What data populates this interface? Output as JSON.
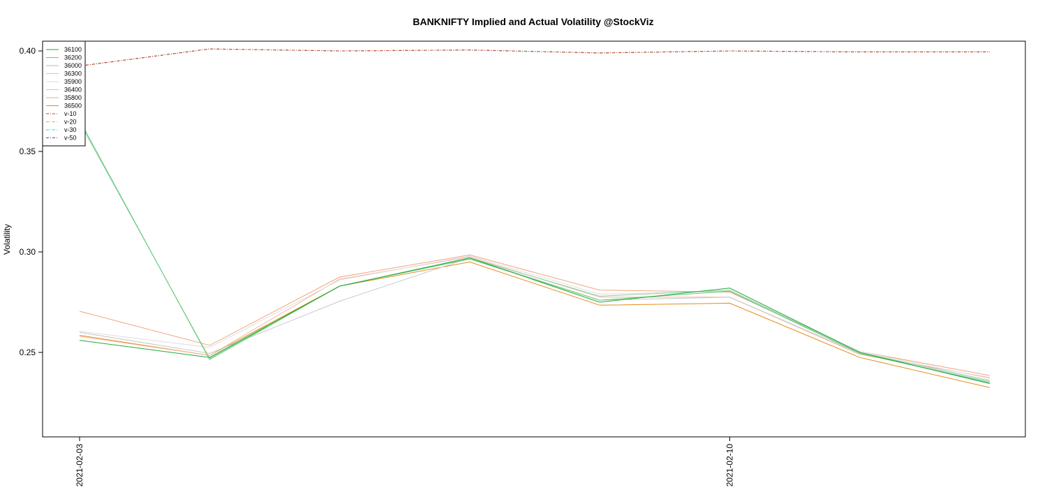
{
  "chart_data": {
    "type": "line",
    "title": "BANKNIFTY Implied and Actual Volatility @StockViz",
    "ylabel": "Volatility",
    "xlabel": "",
    "ylim": [
      0.21,
      0.4
    ],
    "yticks": [
      0.25,
      0.3,
      0.35,
      0.4
    ],
    "ytick_labels": [
      "0.25",
      "0.30",
      "0.35",
      "0.40"
    ],
    "x": [
      "2021-02-03",
      "2021-02-04",
      "2021-02-05",
      "2021-02-08",
      "2021-02-09",
      "2021-02-10",
      "2021-02-11",
      "2021-02-12"
    ],
    "xtick_labels": [
      {
        "x": "2021-02-03",
        "label": "2021-02-03"
      },
      {
        "x": "2021-02-10",
        "label": "2021-02-10"
      }
    ],
    "legend_position": "top-left",
    "series": [
      {
        "name": "36100",
        "color": "#1faa3a",
        "dash": "solid",
        "values": [
          0.256,
          0.2475,
          0.283,
          0.297,
          0.275,
          0.282,
          0.25,
          0.2345
        ]
      },
      {
        "name": "36200",
        "color": "#5fc97a",
        "dash": "solid",
        "values": [
          0.3655,
          0.2465,
          0.283,
          0.2965,
          0.276,
          0.2805,
          0.2495,
          0.235
        ]
      },
      {
        "name": "36000",
        "color": "#8fcf9f",
        "dash": "solid",
        "values": [
          0.3645,
          0.247,
          0.283,
          0.297,
          0.278,
          0.281,
          0.25,
          0.236
        ]
      },
      {
        "name": "36300",
        "color": "#c8c8c8",
        "dash": "solid",
        "values": [
          0.26,
          0.2495,
          0.2755,
          0.297,
          0.276,
          0.2775,
          0.2495,
          0.2355
        ]
      },
      {
        "name": "35900",
        "color": "#dddddd",
        "dash": "solid",
        "values": [
          0.2605,
          0.2525,
          0.286,
          0.298,
          0.279,
          0.2805,
          0.2505,
          0.237
        ]
      },
      {
        "name": "36400",
        "color": "#f2b8a3",
        "dash": "solid",
        "values": [
          0.258,
          0.2485,
          0.2865,
          0.2975,
          0.2775,
          0.2775,
          0.249,
          0.2375
        ]
      },
      {
        "name": "35800",
        "color": "#f0a47e",
        "dash": "solid",
        "values": [
          0.2705,
          0.2535,
          0.2875,
          0.2985,
          0.281,
          0.28,
          0.2505,
          0.2385
        ]
      },
      {
        "name": "36500",
        "color": "#e58c1a",
        "dash": "solid",
        "values": [
          0.2585,
          0.2485,
          0.283,
          0.295,
          0.2735,
          0.2745,
          0.2475,
          0.2325
        ]
      },
      {
        "name": "v-10",
        "color": "#d0342c",
        "dash": "dashdot",
        "values": [
          0.3925,
          0.401,
          0.4,
          0.4005,
          0.399,
          0.4,
          0.3995,
          0.3995
        ]
      },
      {
        "name": "v-20",
        "color": "#9ad22f",
        "dash": "dashdot",
        "values": [
          0.3925,
          0.401,
          0.4,
          0.4005,
          0.399,
          0.4,
          0.3995,
          0.3995
        ]
      },
      {
        "name": "v-30",
        "color": "#22d3d3",
        "dash": "dashdot",
        "values": [
          0.3925,
          0.401,
          0.4,
          0.4005,
          0.399,
          0.4,
          0.3995,
          0.3995
        ]
      },
      {
        "name": "v-50",
        "color": "#7b2fbf",
        "dash": "dashdot",
        "values": [
          0.3925,
          0.401,
          0.4,
          0.4005,
          0.399,
          0.4,
          0.3995,
          0.3995
        ]
      }
    ]
  }
}
